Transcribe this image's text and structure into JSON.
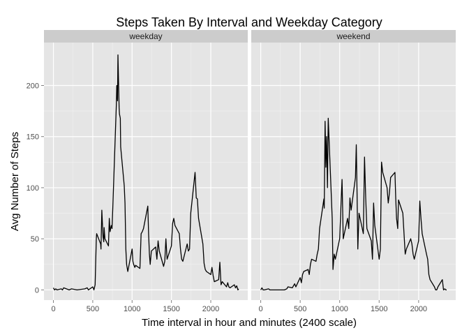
{
  "chart_data": {
    "type": "line",
    "title": "Steps Taken By Interval and Weekday Category",
    "xlabel": "Time interval in hour and minutes (2400 scale)",
    "ylabel": "Avg Number of Steps",
    "xlim": [
      -120,
      2470
    ],
    "ylim": [
      -10,
      242
    ],
    "x_ticks": [
      0,
      500,
      1000,
      1500,
      2000
    ],
    "y_ticks": [
      0,
      50,
      100,
      150,
      200
    ],
    "grid": true,
    "line_color": "#000000",
    "panel_background": "#e5e5e5",
    "strip_background": "#cccccc",
    "panels": [
      {
        "label": "weekday",
        "x": [
          0,
          15,
          30,
          45,
          100,
          115,
          130,
          200,
          230,
          300,
          400,
          430,
          445,
          500,
          515,
          530,
          545,
          550,
          600,
          605,
          615,
          630,
          640,
          645,
          650,
          655,
          700,
          710,
          720,
          735,
          745,
          755,
          800,
          805,
          815,
          820,
          830,
          835,
          840,
          850,
          855,
          900,
          910,
          920,
          930,
          945,
          1000,
          1010,
          1020,
          1035,
          1045,
          1100,
          1115,
          1130,
          1145,
          1200,
          1210,
          1220,
          1230,
          1245,
          1300,
          1315,
          1330,
          1345,
          1400,
          1415,
          1430,
          1445,
          1500,
          1515,
          1530,
          1545,
          1600,
          1615,
          1630,
          1645,
          1700,
          1715,
          1730,
          1745,
          1800,
          1815,
          1830,
          1845,
          1900,
          1915,
          1930,
          1945,
          2000,
          2015,
          2030,
          2045,
          2100,
          2115,
          2130,
          2145,
          2200,
          2215,
          2230,
          2245,
          2300,
          2315,
          2330,
          2345,
          2355
        ],
        "y": [
          2,
          0,
          1,
          0,
          1,
          0,
          2,
          0,
          1,
          0,
          1,
          2,
          0,
          3,
          0,
          5,
          50,
          55,
          45,
          40,
          78,
          52,
          47,
          61,
          55,
          50,
          43,
          70,
          57,
          63,
          60,
          80,
          181,
          200,
          185,
          230,
          196,
          178,
          172,
          168,
          140,
          102,
          85,
          40,
          25,
          18,
          40,
          28,
          25,
          22,
          24,
          21,
          55,
          57,
          60,
          82,
          55,
          35,
          25,
          38,
          42,
          30,
          48,
          38,
          23,
          28,
          50,
          30,
          43,
          65,
          70,
          63,
          55,
          40,
          30,
          28,
          45,
          38,
          40,
          75,
          115,
          90,
          89,
          70,
          45,
          26,
          20,
          18,
          15,
          22,
          14,
          8,
          10,
          27,
          5,
          8,
          3,
          7,
          3,
          2,
          5,
          2,
          4,
          0,
          1
        ]
      },
      {
        "label": "weekend",
        "x": [
          0,
          15,
          30,
          45,
          100,
          115,
          130,
          200,
          230,
          300,
          330,
          345,
          400,
          415,
          430,
          445,
          500,
          515,
          530,
          545,
          600,
          615,
          630,
          645,
          700,
          715,
          730,
          745,
          800,
          805,
          815,
          825,
          835,
          845,
          855,
          905,
          915,
          920,
          930,
          945,
          1000,
          1015,
          1030,
          1045,
          1100,
          1115,
          1130,
          1145,
          1200,
          1210,
          1220,
          1230,
          1245,
          1300,
          1315,
          1330,
          1345,
          1400,
          1415,
          1430,
          1445,
          1500,
          1515,
          1530,
          1545,
          1600,
          1615,
          1630,
          1645,
          1700,
          1710,
          1720,
          1735,
          1745,
          1800,
          1815,
          1830,
          1845,
          1900,
          1915,
          1930,
          1945,
          2000,
          2015,
          2030,
          2045,
          2100,
          2115,
          2130,
          2145,
          2200,
          2215,
          2230,
          2245,
          2300,
          2315,
          2330,
          2345,
          2355
        ],
        "y": [
          0,
          2,
          0,
          0,
          1,
          0,
          0,
          0,
          0,
          0,
          1,
          3,
          2,
          4,
          6,
          3,
          12,
          7,
          15,
          18,
          20,
          15,
          25,
          30,
          28,
          35,
          40,
          60,
          89,
          80,
          165,
          120,
          150,
          100,
          168,
          70,
          20,
          25,
          35,
          30,
          50,
          80,
          108,
          50,
          70,
          60,
          90,
          78,
          110,
          142,
          95,
          40,
          75,
          55,
          130,
          90,
          60,
          48,
          30,
          85,
          63,
          30,
          40,
          125,
          115,
          100,
          85,
          95,
          110,
          115,
          90,
          70,
          60,
          88,
          75,
          55,
          35,
          40,
          50,
          45,
          35,
          30,
          48,
          87,
          70,
          55,
          35,
          30,
          15,
          10,
          3,
          0,
          0,
          3,
          10,
          0,
          1,
          0,
          0
        ]
      }
    ]
  }
}
